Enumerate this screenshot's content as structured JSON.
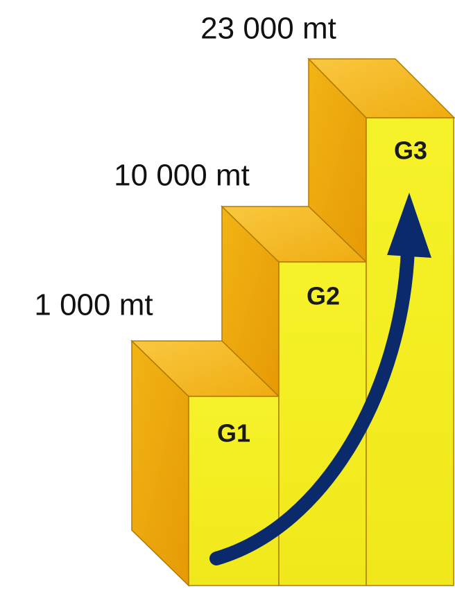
{
  "steps": [
    {
      "label": "G1",
      "value_label": "1 000 mt"
    },
    {
      "label": "G2",
      "value_label": "10 000 mt"
    },
    {
      "label": "G3",
      "value_label": "23 000 mt"
    }
  ]
}
